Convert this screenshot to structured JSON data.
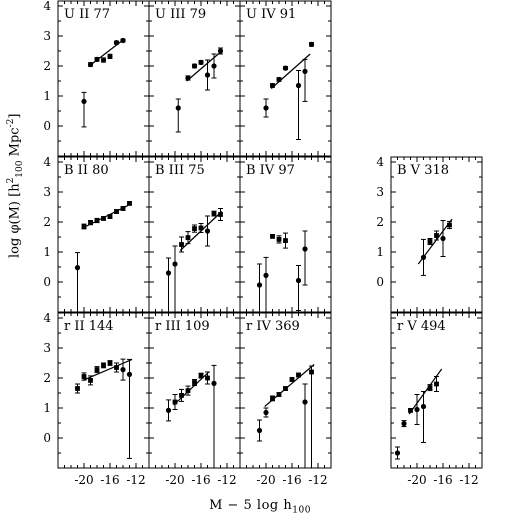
{
  "figure": {
    "ylabel_parts": [
      "log φ(M)  [h",
      "2",
      "100",
      " Mpc",
      "-2",
      "]"
    ],
    "xlabel_parts": [
      "M  −  5 log h",
      "100"
    ],
    "x_ticks": [
      "-20",
      "-16",
      "-12"
    ],
    "y_ticks": [
      "0",
      "1",
      "2",
      "3",
      "4"
    ]
  },
  "chart_data": [
    {
      "type": "scatter",
      "title": "U II 77",
      "xlim": [
        -24,
        -10
      ],
      "ylim": [
        -1,
        4.2
      ],
      "points": [
        [
          -20,
          0.82,
          0.3,
          0.85
        ],
        [
          -19,
          2.05,
          0.06,
          0.06
        ],
        [
          -18,
          2.22,
          0.06,
          0.06
        ],
        [
          -17,
          2.2,
          0.07,
          0.07
        ],
        [
          -16,
          2.32,
          0.07,
          0.07
        ],
        [
          -15,
          2.78,
          0.05,
          0.05
        ],
        [
          -14,
          2.85,
          0.05,
          0.05
        ]
      ],
      "fit": [
        [
          -19.2,
          2.0
        ],
        [
          -13.8,
          2.9
        ]
      ]
    },
    {
      "type": "scatter",
      "title": "U III 79",
      "xlim": [
        -24,
        -10
      ],
      "ylim": [
        -1,
        4.2
      ],
      "points": [
        [
          -19.5,
          0.6,
          0.3,
          0.8
        ],
        [
          -18,
          1.6,
          0.07,
          0.07
        ],
        [
          -17,
          2.0,
          0.06,
          0.06
        ],
        [
          -16,
          2.12,
          0.06,
          0.06
        ],
        [
          -15,
          1.7,
          0.5,
          0.5
        ],
        [
          -14,
          2.0,
          0.4,
          0.4
        ],
        [
          -13,
          2.5,
          0.1,
          0.1
        ]
      ],
      "fit": [
        [
          -18.2,
          1.5
        ],
        [
          -12.8,
          2.5
        ]
      ]
    },
    {
      "type": "scatter",
      "title": "U IV 91",
      "xlim": [
        -24,
        -10
      ],
      "ylim": [
        -1,
        4.2
      ],
      "points": [
        [
          -20,
          0.6,
          0.3,
          0.3
        ],
        [
          -19,
          1.35,
          0.06,
          0.06
        ],
        [
          -18,
          1.55,
          0.06,
          0.06
        ],
        [
          -17,
          1.93,
          0.05,
          0.05
        ],
        [
          -15,
          1.35,
          0.5,
          1.8
        ],
        [
          -14,
          1.82,
          0.4,
          1.0
        ],
        [
          -13,
          2.72,
          0.06,
          0.06
        ]
      ],
      "fit": [
        [
          -19.2,
          1.25
        ],
        [
          -13.2,
          2.4
        ]
      ]
    },
    {
      "type": "scatter",
      "title": "B II 80",
      "xlim": [
        -24,
        -10
      ],
      "ylim": [
        -1,
        4.2
      ],
      "points": [
        [
          -21,
          0.48,
          0.5,
          1.5
        ],
        [
          -20,
          1.85,
          0.08,
          0.08
        ],
        [
          -19,
          1.98,
          0.07,
          0.07
        ],
        [
          -18,
          2.05,
          0.07,
          0.07
        ],
        [
          -17,
          2.12,
          0.06,
          0.06
        ],
        [
          -16,
          2.18,
          0.06,
          0.06
        ],
        [
          -15,
          2.35,
          0.06,
          0.06
        ],
        [
          -14,
          2.45,
          0.06,
          0.06
        ],
        [
          -13,
          2.62,
          0.05,
          0.05
        ]
      ],
      "fit": [
        [
          -20.2,
          1.8
        ],
        [
          -12.8,
          2.6
        ]
      ]
    },
    {
      "type": "scatter",
      "title": "B III 75",
      "xlim": [
        -24,
        -10
      ],
      "ylim": [
        -1,
        4.2
      ],
      "points": [
        [
          -21,
          0.3,
          0.5,
          1.3
        ],
        [
          -20,
          0.6,
          0.6,
          1.6
        ],
        [
          -19,
          1.25,
          0.25,
          0.25
        ],
        [
          -18,
          1.48,
          0.2,
          0.2
        ],
        [
          -17,
          1.78,
          0.12,
          0.12
        ],
        [
          -16,
          1.8,
          0.15,
          0.15
        ],
        [
          -15,
          1.7,
          0.5,
          0.5
        ],
        [
          -14,
          2.28,
          0.08,
          0.08
        ],
        [
          -13,
          2.25,
          0.2,
          0.2
        ]
      ],
      "fit": [
        [
          -19.2,
          1.05
        ],
        [
          -12.8,
          2.35
        ]
      ]
    },
    {
      "type": "scatter",
      "title": "B IV 97",
      "xlim": [
        -24,
        -10
      ],
      "ylim": [
        -1,
        4.2
      ],
      "points": [
        [
          -21,
          -0.1,
          0.7,
          1.0
        ],
        [
          -20,
          0.22,
          0.6,
          1.3
        ],
        [
          -19,
          1.52,
          0.05,
          0.05
        ],
        [
          -18,
          1.42,
          0.12,
          0.12
        ],
        [
          -17,
          1.38,
          0.25,
          0.25
        ],
        [
          -15,
          0.05,
          0.5,
          1.0
        ],
        [
          -14,
          1.1,
          0.6,
          1.2
        ]
      ],
      "fit": null
    },
    {
      "type": "scatter",
      "title": "B V 318",
      "xlim": [
        -24,
        -10
      ],
      "ylim": [
        -1,
        4.2
      ],
      "points": [
        [
          -19,
          0.82,
          0.6,
          0.6
        ],
        [
          -18,
          1.35,
          0.1,
          0.1
        ],
        [
          -17,
          1.55,
          0.15,
          0.15
        ],
        [
          -16,
          1.45,
          0.6,
          0.6
        ],
        [
          -15,
          1.9,
          0.12,
          0.12
        ]
      ],
      "fit": [
        [
          -19.8,
          0.6
        ],
        [
          -14.6,
          2.1
        ]
      ]
    },
    {
      "type": "scatter",
      "title": "r II 144",
      "xlim": [
        -24,
        -10
      ],
      "ylim": [
        -1,
        4.2
      ],
      "points": [
        [
          -21,
          1.65,
          0.15,
          0.15
        ],
        [
          -20,
          2.05,
          0.12,
          0.12
        ],
        [
          -19,
          1.92,
          0.15,
          0.15
        ],
        [
          -18,
          2.28,
          0.1,
          0.1
        ],
        [
          -17,
          2.42,
          0.08,
          0.08
        ],
        [
          -16,
          2.5,
          0.08,
          0.08
        ],
        [
          -15,
          2.35,
          0.15,
          0.15
        ],
        [
          -14,
          2.28,
          0.35,
          0.35
        ],
        [
          -13,
          2.12,
          0.5,
          2.8
        ]
      ],
      "fit": [
        [
          -20.2,
          1.92
        ],
        [
          -12.6,
          2.62
        ]
      ]
    },
    {
      "type": "scatter",
      "title": "r III 109",
      "xlim": [
        -24,
        -10
      ],
      "ylim": [
        -1,
        4.2
      ],
      "points": [
        [
          -21,
          0.92,
          0.35,
          0.35
        ],
        [
          -20,
          1.2,
          0.25,
          0.25
        ],
        [
          -19,
          1.42,
          0.2,
          0.2
        ],
        [
          -18,
          1.58,
          0.15,
          0.15
        ],
        [
          -17,
          1.85,
          0.1,
          0.1
        ],
        [
          -16,
          2.08,
          0.08,
          0.08
        ],
        [
          -15,
          2.0,
          0.2,
          0.2
        ],
        [
          -14,
          1.82,
          0.6,
          2.8
        ]
      ],
      "fit": [
        [
          -20.2,
          1.1
        ],
        [
          -14.8,
          2.2
        ]
      ]
    },
    {
      "type": "scatter",
      "title": "r IV 369",
      "xlim": [
        -24,
        -10
      ],
      "ylim": [
        -1,
        4.2
      ],
      "points": [
        [
          -21,
          0.25,
          0.35,
          0.35
        ],
        [
          -20,
          0.85,
          0.15,
          0.15
        ],
        [
          -19,
          1.32,
          0.08,
          0.08
        ],
        [
          -18,
          1.45,
          0.06,
          0.06
        ],
        [
          -17,
          1.65,
          0.06,
          0.06
        ],
        [
          -16,
          1.95,
          0.06,
          0.06
        ],
        [
          -15,
          2.1,
          0.06,
          0.06
        ],
        [
          -14,
          1.2,
          0.6,
          2.2
        ],
        [
          -13,
          2.2,
          0.2,
          3.2
        ]
      ],
      "fit": [
        [
          -20.2,
          1.05
        ],
        [
          -12.6,
          2.45
        ]
      ]
    },
    {
      "type": "scatter",
      "title": "r V 494",
      "xlim": [
        -24,
        -10
      ],
      "ylim": [
        -1,
        4.2
      ],
      "points": [
        [
          -23,
          -0.5,
          0.2,
          0.2
        ],
        [
          -22,
          0.48,
          0.1,
          0.1
        ],
        [
          -21,
          0.92,
          0.05,
          0.05
        ],
        [
          -20,
          0.95,
          0.5,
          0.5
        ],
        [
          -19,
          1.05,
          0.5,
          1.2
        ],
        [
          -18,
          1.68,
          0.1,
          0.1
        ],
        [
          -17,
          1.8,
          0.25,
          0.25
        ]
      ],
      "fit": [
        [
          -21.2,
          0.8
        ],
        [
          -16.2,
          2.3
        ]
      ]
    }
  ]
}
